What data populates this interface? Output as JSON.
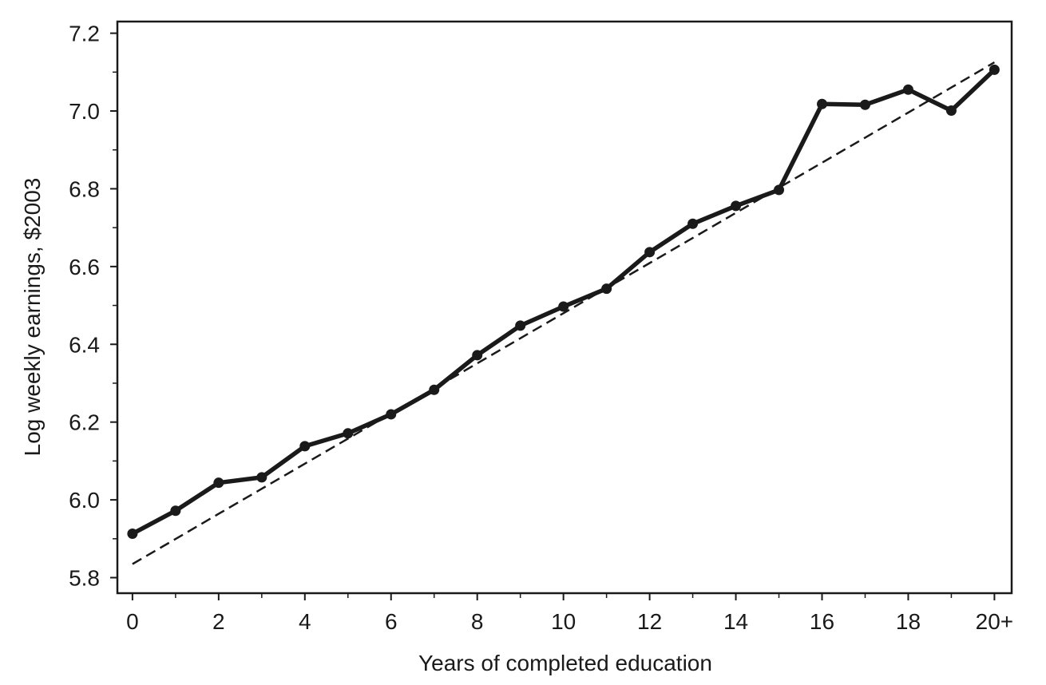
{
  "chart_data": {
    "type": "line",
    "title": "",
    "xlabel": "Years of completed education",
    "ylabel": "Log weekly earnings, $2003",
    "x": [
      0,
      1,
      2,
      3,
      4,
      5,
      6,
      7,
      8,
      9,
      10,
      11,
      12,
      13,
      14,
      15,
      16,
      17,
      18,
      19,
      20
    ],
    "x_tick_values": [
      0,
      2,
      4,
      6,
      8,
      10,
      12,
      14,
      16,
      18,
      20
    ],
    "x_tick_labels": [
      "0",
      "2",
      "4",
      "6",
      "8",
      "10",
      "12",
      "14",
      "16",
      "18",
      "20+"
    ],
    "xlim": [
      -0.35,
      20.4
    ],
    "y_tick_values": [
      5.8,
      6.0,
      6.2,
      6.4,
      6.6,
      6.8,
      7.0,
      7.2
    ],
    "y_tick_labels": [
      "5.8",
      "6.0",
      "6.2",
      "6.4",
      "6.6",
      "6.8",
      "7.0",
      "7.2"
    ],
    "ylim": [
      5.76,
      7.23
    ],
    "grid": false,
    "series": [
      {
        "style": "solid-with-markers",
        "color": "#1a1a1a",
        "values": [
          5.913,
          5.972,
          6.044,
          6.058,
          6.138,
          6.171,
          6.22,
          6.283,
          6.372,
          6.448,
          6.497,
          6.543,
          6.637,
          6.71,
          6.756,
          6.797,
          7.018,
          7.016,
          7.055,
          7.001,
          7.106
        ]
      },
      {
        "style": "dashed",
        "color": "#1a1a1a",
        "values": [
          5.835,
          5.8995,
          5.964,
          6.0285,
          6.093,
          6.1575,
          6.222,
          6.2865,
          6.351,
          6.4155,
          6.48,
          6.5445,
          6.609,
          6.6735,
          6.738,
          6.8025,
          6.867,
          6.9315,
          6.996,
          7.0605,
          7.125
        ]
      }
    ]
  }
}
